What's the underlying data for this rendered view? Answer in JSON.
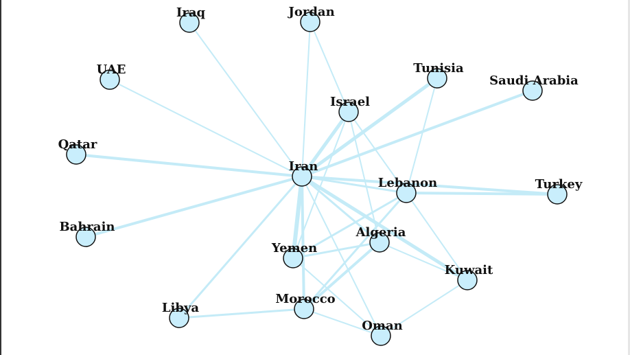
{
  "colors": {
    "edge": "#c4ebf7",
    "node_fill": "#c9eefc",
    "node_stroke": "#111111",
    "label": "#111111"
  },
  "network": {
    "nodes": [
      {
        "id": "iraq",
        "label": "Iraq"
      },
      {
        "id": "jordan",
        "label": "Jordan"
      },
      {
        "id": "uae",
        "label": "UAE"
      },
      {
        "id": "tunisia",
        "label": "Tunisia"
      },
      {
        "id": "saudi_arabia",
        "label": "Saudi Arabia"
      },
      {
        "id": "israel",
        "label": "Israel"
      },
      {
        "id": "qatar",
        "label": "Qatar"
      },
      {
        "id": "iran",
        "label": "Iran"
      },
      {
        "id": "lebanon",
        "label": "Lebanon"
      },
      {
        "id": "turkey",
        "label": "Turkey"
      },
      {
        "id": "bahrain",
        "label": "Bahrain"
      },
      {
        "id": "algeria",
        "label": "Algeria"
      },
      {
        "id": "yemen",
        "label": "Yemen"
      },
      {
        "id": "kuwait",
        "label": "Kuwait"
      },
      {
        "id": "libya",
        "label": "Libya"
      },
      {
        "id": "morocco",
        "label": "Morocco"
      },
      {
        "id": "oman",
        "label": "Oman"
      }
    ],
    "edges": [
      {
        "source": "iran",
        "target": "iraq",
        "weight": 2
      },
      {
        "source": "iran",
        "target": "jordan",
        "weight": 2
      },
      {
        "source": "iran",
        "target": "uae",
        "weight": 2
      },
      {
        "source": "iran",
        "target": "tunisia",
        "weight": 5
      },
      {
        "source": "iran",
        "target": "saudi_arabia",
        "weight": 4
      },
      {
        "source": "iran",
        "target": "israel",
        "weight": 5
      },
      {
        "source": "iran",
        "target": "qatar",
        "weight": 4
      },
      {
        "source": "iran",
        "target": "lebanon",
        "weight": 3
      },
      {
        "source": "iran",
        "target": "turkey",
        "weight": 4
      },
      {
        "source": "iran",
        "target": "bahrain",
        "weight": 4
      },
      {
        "source": "iran",
        "target": "algeria",
        "weight": 3
      },
      {
        "source": "iran",
        "target": "yemen",
        "weight": 6
      },
      {
        "source": "iran",
        "target": "kuwait",
        "weight": 5
      },
      {
        "source": "iran",
        "target": "libya",
        "weight": 3
      },
      {
        "source": "iran",
        "target": "morocco",
        "weight": 4
      },
      {
        "source": "iran",
        "target": "oman",
        "weight": 2
      },
      {
        "source": "lebanon",
        "target": "turkey",
        "weight": 4
      },
      {
        "source": "israel",
        "target": "jordan",
        "weight": 2
      },
      {
        "source": "israel",
        "target": "lebanon",
        "weight": 2
      },
      {
        "source": "israel",
        "target": "algeria",
        "weight": 2
      },
      {
        "source": "israel",
        "target": "yemen",
        "weight": 2
      },
      {
        "source": "tunisia",
        "target": "lebanon",
        "weight": 2
      },
      {
        "source": "lebanon",
        "target": "yemen",
        "weight": 3
      },
      {
        "source": "lebanon",
        "target": "morocco",
        "weight": 3
      },
      {
        "source": "lebanon",
        "target": "kuwait",
        "weight": 2
      },
      {
        "source": "algeria",
        "target": "yemen",
        "weight": 3
      },
      {
        "source": "algeria",
        "target": "morocco",
        "weight": 4
      },
      {
        "source": "algeria",
        "target": "kuwait",
        "weight": 2
      },
      {
        "source": "yemen",
        "target": "oman",
        "weight": 2
      },
      {
        "source": "morocco",
        "target": "libya",
        "weight": 3
      },
      {
        "source": "morocco",
        "target": "oman",
        "weight": 2
      },
      {
        "source": "kuwait",
        "target": "oman",
        "weight": 2
      }
    ]
  }
}
